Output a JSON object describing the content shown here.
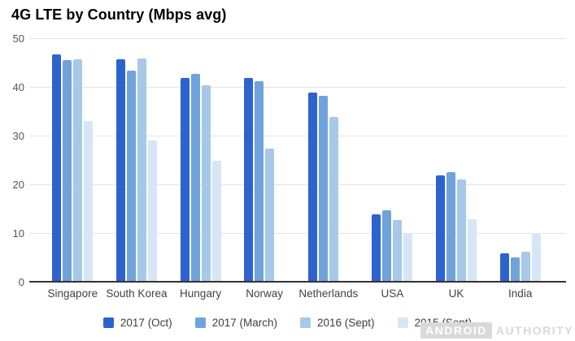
{
  "chart_data": {
    "type": "bar",
    "title": "4G LTE by Country (Mbps avg)",
    "categories": [
      "Singapore",
      "South Korea",
      "Hungary",
      "Norway",
      "Netherlands",
      "USA",
      "UK",
      "India"
    ],
    "series": [
      {
        "name": "2017 (Oct)",
        "color": "#2d63cf",
        "values": [
          46.6,
          45.7,
          41.9,
          41.9,
          38.8,
          13.9,
          21.8,
          5.9
        ]
      },
      {
        "name": "2017 (March)",
        "color": "#6fa3dc",
        "values": [
          45.5,
          43.4,
          42.6,
          41.2,
          38.2,
          14.7,
          22.5,
          5.0
        ]
      },
      {
        "name": "2016 (Sept)",
        "color": "#a6c9ea",
        "values": [
          45.7,
          45.8,
          40.4,
          27.3,
          33.8,
          12.7,
          21.0,
          6.2
        ]
      },
      {
        "name": "2015 (Sept)",
        "color": "#d7e6f6",
        "values": [
          33.0,
          29.0,
          24.8,
          null,
          null,
          9.9,
          12.9,
          9.8
        ]
      }
    ],
    "xlabel": "",
    "ylabel": "",
    "ylim": [
      0,
      50
    ],
    "yticks": [
      0,
      10,
      20,
      30,
      40,
      50
    ],
    "grid": true,
    "legend_position": "bottom"
  },
  "watermark": {
    "brand_primary": "ANDROID",
    "brand_secondary": "AUTHORITY"
  },
  "colors": {
    "gridline": "#e4e4e4",
    "axis_line": "#333333",
    "tick_label": "#555555",
    "category_label": "#424242",
    "legend_label": "#3c4043",
    "watermark": "#d9d9d9",
    "background": "#ffffff"
  }
}
